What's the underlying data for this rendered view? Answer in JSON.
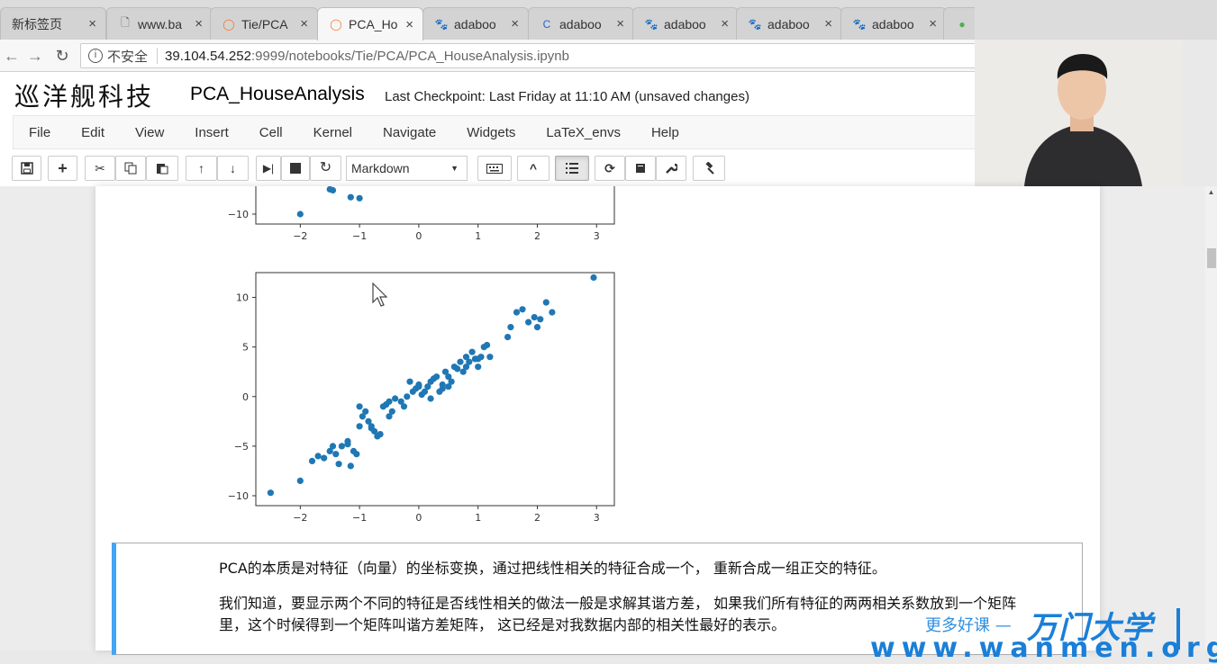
{
  "browser": {
    "tabs": [
      {
        "title": "新标签页",
        "icon": "blank-icon"
      },
      {
        "title": "www.ba",
        "icon": "page-icon"
      },
      {
        "title": "Tie/PCA",
        "icon": "jupyter-icon"
      },
      {
        "title": "PCA_Ho",
        "icon": "jupyter-icon",
        "active": true
      },
      {
        "title": "adaboo",
        "icon": "baidu-paw-icon"
      },
      {
        "title": "adaboo",
        "icon": "loading-icon"
      },
      {
        "title": "adaboo",
        "icon": "baidu-paw-icon"
      },
      {
        "title": "adaboo",
        "icon": "baidu-paw-icon"
      },
      {
        "title": "adaboo",
        "icon": "baidu-paw-icon"
      },
      {
        "title": "",
        "icon": "green-circle-icon"
      }
    ],
    "address": {
      "security_label": "不安全",
      "host": "39.104.54.252",
      "path": ":9999/notebooks/Tie/PCA/PCA_HouseAnalysis.ipynb"
    }
  },
  "jupyter": {
    "logo_text": "巡洋舰科技",
    "notebook_name": "PCA_HouseAnalysis",
    "checkpoint": "Last Checkpoint: Last Friday at 11:10 AM (unsaved changes)",
    "menu": [
      "File",
      "Edit",
      "View",
      "Insert",
      "Cell",
      "Kernel",
      "Navigate",
      "Widgets",
      "LaTeX_envs",
      "Help"
    ],
    "cell_type": "Markdown"
  },
  "chart_data": [
    {
      "type": "scatter",
      "partial": true,
      "x_ticks": [
        "−2",
        "−1",
        "0",
        "1",
        "2",
        "3"
      ],
      "y_ticks": [
        "−10"
      ],
      "x": [
        -2.0,
        -1.5,
        -1.45,
        -1.15,
        -1.0
      ],
      "y": [
        -10.0,
        -7.5,
        -7.6,
        -8.3,
        -8.4
      ],
      "color": "#1f77b4"
    },
    {
      "type": "scatter",
      "x_ticks": [
        "−2",
        "−1",
        "0",
        "1",
        "2",
        "3"
      ],
      "y_ticks": [
        "10",
        "5",
        "0",
        "−5",
        "−10"
      ],
      "xlim": [
        -2.75,
        3.3
      ],
      "ylim": [
        -11,
        12.5
      ],
      "color": "#1f77b4",
      "x": [
        -2.5,
        -2.0,
        -1.8,
        -1.7,
        -1.6,
        -1.5,
        -1.45,
        -1.4,
        -1.35,
        -1.3,
        -1.2,
        -1.15,
        -1.1,
        -1.05,
        -1.0,
        -0.95,
        -0.9,
        -0.85,
        -0.8,
        -0.75,
        -0.7,
        -0.65,
        -0.6,
        -0.55,
        -0.5,
        -0.45,
        -0.4,
        -0.3,
        -0.25,
        -0.2,
        -0.15,
        -0.1,
        -0.05,
        0.0,
        0.05,
        0.1,
        0.15,
        0.2,
        0.25,
        0.3,
        0.35,
        0.4,
        0.45,
        0.5,
        0.55,
        0.6,
        0.65,
        0.7,
        0.75,
        0.8,
        0.85,
        0.9,
        0.95,
        1.0,
        1.05,
        1.1,
        1.15,
        1.2,
        1.5,
        1.55,
        1.65,
        1.75,
        1.85,
        1.95,
        2.0,
        2.05,
        2.15,
        2.25,
        2.95,
        -1.0,
        -0.8,
        0.2,
        0.5,
        0.8,
        -0.5,
        0.0,
        0.4,
        1.0,
        -1.2
      ],
      "y": [
        -9.7,
        -8.5,
        -6.5,
        -6.0,
        -6.2,
        -5.5,
        -5.0,
        -5.8,
        -6.8,
        -5.0,
        -4.5,
        -7.0,
        -5.5,
        -5.8,
        -3.0,
        -2.0,
        -1.5,
        -2.5,
        -3.0,
        -3.5,
        -4.0,
        -3.8,
        -1.0,
        -0.8,
        -0.5,
        -1.5,
        -0.2,
        -0.5,
        -1.0,
        0.0,
        1.5,
        0.5,
        0.8,
        1.0,
        0.2,
        0.5,
        1.0,
        1.5,
        1.8,
        2.0,
        0.5,
        1.2,
        2.5,
        2.0,
        1.5,
        3.0,
        2.8,
        3.5,
        2.5,
        4.0,
        3.5,
        4.5,
        3.8,
        3.0,
        4.0,
        5.0,
        5.2,
        4.0,
        6.0,
        7.0,
        8.5,
        8.8,
        7.5,
        8.0,
        7.0,
        7.8,
        9.5,
        8.5,
        12.0,
        -1.0,
        -3.2,
        -0.2,
        1.0,
        3.0,
        -2.0,
        1.2,
        0.8,
        3.8,
        -4.8
      ]
    }
  ],
  "markdown": {
    "paragraph1": "PCA的本质是对特征（向量）的坐标变换，通过把线性相关的特征合成一个， 重新合成一组正交的特征。",
    "paragraph2_line1": "我们知道，要显示两个不同的特征是否线性相关的做法一般是求解其谐方差， 如果我们所有特征的两两相关系数放到一个矩阵",
    "paragraph2_line2": "里，这个时候得到一个矩阵叫谐方差矩阵， 这已经是对我数据内部的相关性最好的表示。"
  },
  "watermark": {
    "slogan": "更多好课 —",
    "brand": "万门大学",
    "url": "www.wanmen.org"
  }
}
